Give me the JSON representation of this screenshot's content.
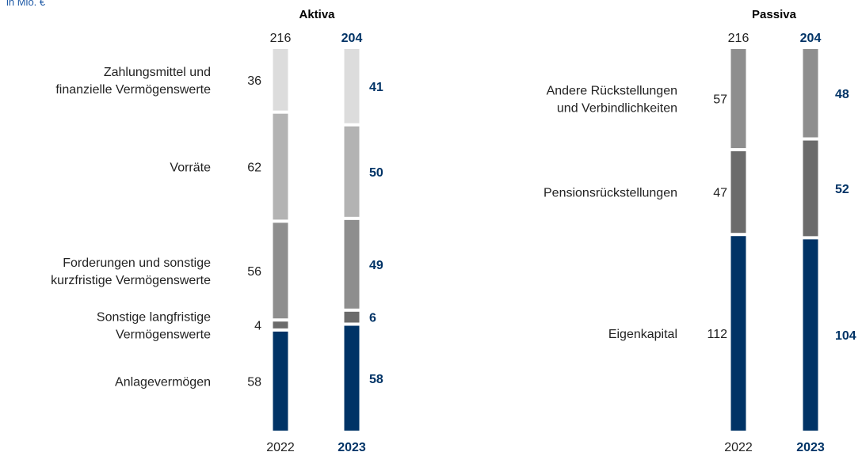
{
  "unit_label": "in Mio. €",
  "colors": {
    "navy": "#003366",
    "label_text": "#222222",
    "highlight_text": "#003366"
  },
  "chart_data": [
    {
      "type": "bar",
      "stacked": true,
      "title": "Aktiva",
      "categories": [
        "2022",
        "2023"
      ],
      "totals": [
        216,
        204
      ],
      "series": [
        {
          "name": "Anlagevermögen",
          "lines": [
            "Anlagevermögen"
          ],
          "values": [
            58,
            58
          ],
          "color": "#003366"
        },
        {
          "name": "Sonstige langfristige Vermögenswerte",
          "lines": [
            "Sonstige langfristige",
            "Vermögenswerte"
          ],
          "values": [
            4,
            6
          ],
          "color": "#6b6b6b"
        },
        {
          "name": "Forderungen und sonstige kurzfristige Vermögenswerte",
          "lines": [
            "Forderungen und sonstige",
            "kurzfristige Vermögenswerte"
          ],
          "values": [
            56,
            49
          ],
          "color": "#8e8e8e"
        },
        {
          "name": "Vorräte",
          "lines": [
            "Vorräte"
          ],
          "values": [
            62,
            50
          ],
          "color": "#b3b3b3"
        },
        {
          "name": "Zahlungsmittel und finanzielle Vermögenswerte",
          "lines": [
            "Zahlungsmittel und",
            "finanzielle Vermögenswerte"
          ],
          "values": [
            36,
            41
          ],
          "color": "#dcdcdc"
        }
      ]
    },
    {
      "type": "bar",
      "stacked": true,
      "title": "Passiva",
      "categories": [
        "2022",
        "2023"
      ],
      "totals": [
        216,
        204
      ],
      "series": [
        {
          "name": "Eigenkapital",
          "lines": [
            "Eigenkapital"
          ],
          "values": [
            112,
            104
          ],
          "color": "#003366"
        },
        {
          "name": "Pensionsrückstellungen",
          "lines": [
            "Pensionsrückstellungen"
          ],
          "values": [
            47,
            52
          ],
          "color": "#6b6b6b"
        },
        {
          "name": "Andere Rückstellungen und Verbindlichkeiten",
          "lines": [
            "Andere Rückstellungen",
            "und Verbindlichkeiten"
          ],
          "values": [
            57,
            48
          ],
          "color": "#8e8e8e"
        }
      ]
    }
  ]
}
